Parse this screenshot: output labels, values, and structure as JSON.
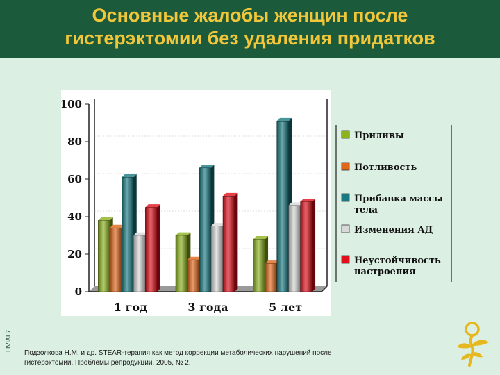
{
  "slide": {
    "title_line1": "Основные жалобы женщин после",
    "title_line2": "гистерэктомии без удаления придатков",
    "side_code": "LIVIAL7",
    "citation_line1": "Подзолкова Н.М. и др. STEAR-терапия как метод коррекции метаболических нарушений после",
    "citation_line2": "гистерэктомии. Проблемы репродукции. 2005, № 2.",
    "colors": {
      "header_bg": "#1c5a3c",
      "title": "#f0c63a",
      "background": "#dcefe3",
      "logo": "#e6b820"
    }
  },
  "chart_data": {
    "type": "bar",
    "categories": [
      "1 год",
      "3 года",
      "5 лет"
    ],
    "ylim": [
      0,
      100
    ],
    "yticks": [
      "0",
      "20",
      "40",
      "60",
      "80",
      "100"
    ],
    "grid": false,
    "legend_position": "right",
    "series": [
      {
        "name": "Приливы",
        "values": [
          38,
          30,
          28
        ],
        "color": "#8cb21e"
      },
      {
        "name": "Потливость",
        "values": [
          34,
          17,
          15
        ],
        "color": "#e0661a"
      },
      {
        "name": "Прибавка массы тела",
        "legend_lines": [
          "Прибавка массы",
          "тела"
        ],
        "values": [
          61,
          66,
          91
        ],
        "color": "#1a7a82"
      },
      {
        "name": "Изменения АД",
        "values": [
          30,
          35,
          46
        ],
        "color": "#d8d8d8"
      },
      {
        "name": "Неустойчивость настроения",
        "legend_lines": [
          "Неустойчивость",
          "настроения"
        ],
        "values": [
          45,
          51,
          48
        ],
        "color": "#e0101c"
      }
    ]
  }
}
